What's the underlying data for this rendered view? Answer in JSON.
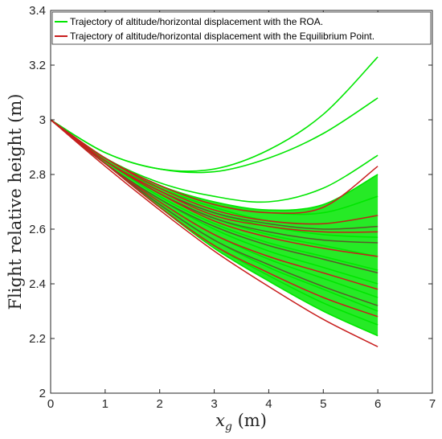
{
  "chart_data": {
    "type": "line",
    "title": "",
    "xlabel": "x_g (m)",
    "xlabel_main": "x",
    "xlabel_sub": "g",
    "xlabel_unit": " (m)",
    "ylabel": "Flight relative height (m)",
    "xlim": [
      0,
      7
    ],
    "ylim": [
      2,
      3.4
    ],
    "xticks": [
      "0",
      "1",
      "2",
      "3",
      "4",
      "5",
      "6",
      "7"
    ],
    "yticks": [
      "2",
      "2.2",
      "2.4",
      "2.6",
      "2.8",
      "3",
      "3.2",
      "3.4"
    ],
    "grid": false,
    "legend_position": "top",
    "legend": [
      "Trajectory of altitude/horizontal displacement with the ROA.",
      "Trajectory of  altitude/horizontal displacement with the Equilibrium Point."
    ],
    "colors": {
      "roa": "#00e600",
      "equilibrium": "#c81e1e",
      "equilibrium_dark": "#5a5a2a"
    },
    "series": [
      {
        "name": "Trajectory of altitude/horizontal displacement with the ROA.",
        "color": "#00e600",
        "lines": [
          {
            "x": [
              0,
              1,
              2,
              3,
              4,
              5,
              6
            ],
            "y": [
              3.0,
              2.88,
              2.82,
              2.82,
              2.89,
              3.02,
              3.23
            ]
          },
          {
            "x": [
              0,
              1,
              2,
              3,
              4,
              5,
              6
            ],
            "y": [
              3.0,
              2.88,
              2.82,
              2.81,
              2.86,
              2.95,
              3.08
            ]
          },
          {
            "x": [
              0,
              1,
              2,
              3,
              4,
              5,
              6
            ],
            "y": [
              3.0,
              2.86,
              2.77,
              2.72,
              2.7,
              2.75,
              2.87
            ]
          },
          {
            "x": [
              0,
              1,
              2,
              3,
              4,
              5,
              6
            ],
            "y": [
              3.0,
              2.86,
              2.76,
              2.7,
              2.67,
              2.69,
              2.8
            ]
          },
          {
            "x": [
              0,
              1,
              2,
              3,
              4,
              5,
              6
            ],
            "y": [
              3.0,
              2.86,
              2.76,
              2.69,
              2.66,
              2.66,
              2.72
            ]
          },
          {
            "x": [
              0,
              1,
              2,
              3,
              4,
              5,
              6
            ],
            "y": [
              3.0,
              2.85,
              2.75,
              2.68,
              2.63,
              2.62,
              2.65
            ]
          },
          {
            "x": [
              0,
              1,
              2,
              3,
              4,
              5,
              6
            ],
            "y": [
              3.0,
              2.85,
              2.74,
              2.66,
              2.61,
              2.58,
              2.57
            ]
          },
          {
            "x": [
              0,
              1,
              2,
              3,
              4,
              5,
              6
            ],
            "y": [
              3.0,
              2.85,
              2.73,
              2.64,
              2.58,
              2.54,
              2.5
            ]
          },
          {
            "x": [
              0,
              1,
              2,
              3,
              4,
              5,
              6
            ],
            "y": [
              3.0,
              2.85,
              2.72,
              2.62,
              2.55,
              2.5,
              2.45
            ]
          },
          {
            "x": [
              0,
              1,
              2,
              3,
              4,
              5,
              6
            ],
            "y": [
              3.0,
              2.84,
              2.71,
              2.6,
              2.52,
              2.46,
              2.4
            ]
          },
          {
            "x": [
              0,
              1,
              2,
              3,
              4,
              5,
              6
            ],
            "y": [
              3.0,
              2.84,
              2.7,
              2.58,
              2.49,
              2.42,
              2.35
            ]
          },
          {
            "x": [
              0,
              1,
              2,
              3,
              4,
              5,
              6
            ],
            "y": [
              3.0,
              2.84,
              2.69,
              2.56,
              2.46,
              2.38,
              2.3
            ]
          },
          {
            "x": [
              0,
              1,
              2,
              3,
              4,
              5,
              6
            ],
            "y": [
              3.0,
              2.84,
              2.68,
              2.54,
              2.43,
              2.33,
              2.25
            ]
          },
          {
            "x": [
              0,
              1,
              2,
              3,
              4,
              5,
              6
            ],
            "y": [
              3.0,
              2.84,
              2.68,
              2.53,
              2.41,
              2.3,
              2.21
            ]
          }
        ]
      },
      {
        "name": "Trajectory of  altitude/horizontal displacement with the Equilibrium Point.",
        "color": "#c81e1e",
        "lines": [
          {
            "x": [
              0,
              1,
              2,
              3,
              4,
              5,
              6
            ],
            "y": [
              3.0,
              2.86,
              2.76,
              2.69,
              2.66,
              2.68,
              2.83
            ]
          },
          {
            "x": [
              0,
              1,
              2,
              3,
              4,
              5,
              6
            ],
            "y": [
              3.0,
              2.86,
              2.75,
              2.67,
              2.63,
              2.62,
              2.65
            ]
          },
          {
            "x": [
              0,
              1,
              2,
              3,
              4,
              5,
              6
            ],
            "y": [
              3.0,
              2.85,
              2.74,
              2.66,
              2.62,
              2.6,
              2.61
            ]
          },
          {
            "x": [
              0,
              1,
              2,
              3,
              4,
              5,
              6
            ],
            "y": [
              3.0,
              2.85,
              2.74,
              2.65,
              2.61,
              2.59,
              2.59
            ]
          },
          {
            "x": [
              0,
              1,
              2,
              3,
              4,
              5,
              6
            ],
            "y": [
              3.0,
              2.85,
              2.73,
              2.64,
              2.59,
              2.56,
              2.55
            ]
          },
          {
            "x": [
              0,
              1,
              2,
              3,
              4,
              5,
              6
            ],
            "y": [
              3.0,
              2.85,
              2.73,
              2.63,
              2.57,
              2.53,
              2.5
            ]
          },
          {
            "x": [
              0,
              1,
              2,
              3,
              4,
              5,
              6
            ],
            "y": [
              3.0,
              2.84,
              2.71,
              2.61,
              2.54,
              2.49,
              2.44
            ]
          },
          {
            "x": [
              0,
              1,
              2,
              3,
              4,
              5,
              6
            ],
            "y": [
              3.0,
              2.84,
              2.7,
              2.58,
              2.5,
              2.44,
              2.38
            ]
          },
          {
            "x": [
              0,
              1,
              2,
              3,
              4,
              5,
              6
            ],
            "y": [
              3.0,
              2.84,
              2.69,
              2.56,
              2.47,
              2.39,
              2.32
            ]
          },
          {
            "x": [
              0,
              1,
              2,
              3,
              4,
              5,
              6
            ],
            "y": [
              3.0,
              2.84,
              2.68,
              2.54,
              2.44,
              2.35,
              2.28
            ]
          },
          {
            "x": [
              0,
              1,
              2,
              3,
              4,
              5,
              6
            ],
            "y": [
              3.0,
              2.83,
              2.67,
              2.52,
              2.39,
              2.27,
              2.17
            ]
          }
        ]
      }
    ]
  }
}
